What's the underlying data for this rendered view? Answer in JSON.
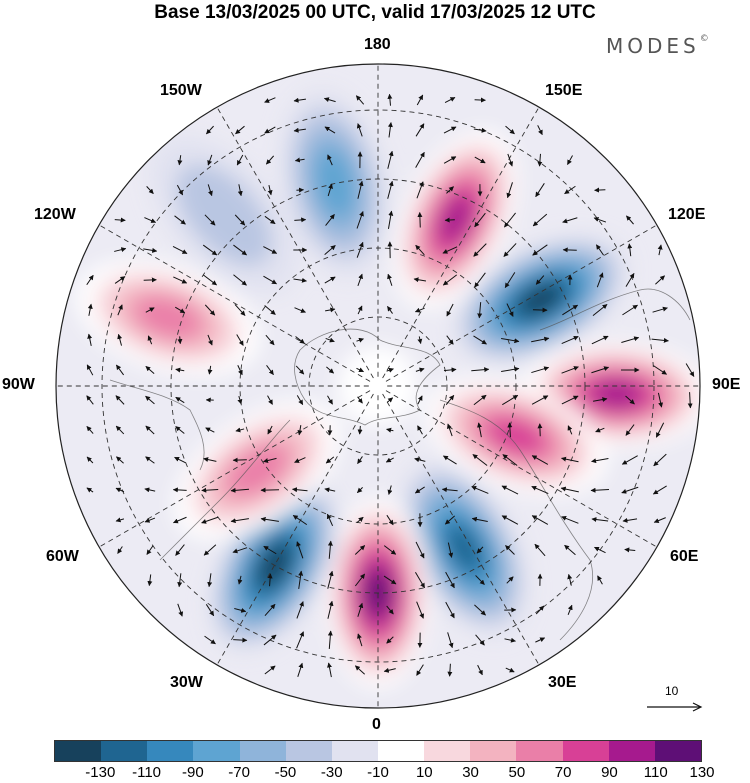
{
  "title": "Base 13/03/2025 00 UTC, valid 17/03/2025 12 UTC",
  "brand": {
    "name": "MODES",
    "mark": "©"
  },
  "longitude_labels": {
    "top": "180",
    "bottom": "0",
    "left": "90W",
    "right": "90E",
    "upper_left_1": "150W",
    "upper_left_2": "120W",
    "upper_right_1": "150E",
    "upper_right_2": "120E",
    "lower_left_1": "60W",
    "lower_left_2": "30W",
    "lower_right_1": "60E",
    "lower_right_2": "30E"
  },
  "reference_vector": {
    "label": "10"
  },
  "colorbar": {
    "colors": [
      "#17415c",
      "#1f6591",
      "#3688bd",
      "#5ea4d2",
      "#8fb4da",
      "#b9c6e2",
      "#e1e2f0",
      "#ffffff",
      "#f8d8de",
      "#f3b3c0",
      "#ea7fa8",
      "#d84096",
      "#a61a8e",
      "#5e0f76"
    ],
    "ticks": [
      "-130",
      "-110",
      "-90",
      "-70",
      "-50",
      "-30",
      "-10",
      "10",
      "30",
      "50",
      "70",
      "90",
      "110",
      "130"
    ]
  },
  "anomaly_centers": [
    {
      "sign": "positive",
      "level": 110,
      "lon": 155,
      "lat": 50
    },
    {
      "sign": "negative",
      "level": -130,
      "lon": 118,
      "lat": 50
    },
    {
      "sign": "positive",
      "level": 110,
      "lon": 88,
      "lat": 38
    },
    {
      "sign": "positive",
      "level": 90,
      "lon": 70,
      "lat": 58
    },
    {
      "sign": "negative",
      "level": -110,
      "lon": 28,
      "lat": 50
    },
    {
      "sign": "positive",
      "level": 130,
      "lon": 0,
      "lat": 45
    },
    {
      "sign": "negative",
      "level": -130,
      "lon": -30,
      "lat": 45
    },
    {
      "sign": "positive",
      "level": 70,
      "lon": -55,
      "lat": 58
    },
    {
      "sign": "positive",
      "level": 70,
      "lon": -108,
      "lat": 42
    },
    {
      "sign": "negative",
      "level": -30,
      "lon": -138,
      "lat": 40
    },
    {
      "sign": "negative",
      "level": -70,
      "lon": -168,
      "lat": 45
    }
  ]
}
